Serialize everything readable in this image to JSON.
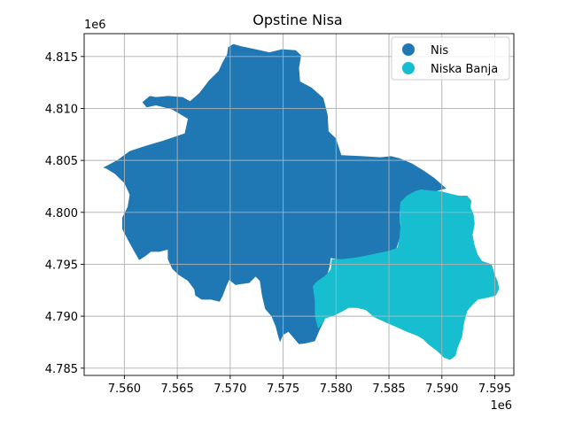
{
  "chart_data": {
    "type": "choropleth-map",
    "title": "Opstine Nisa",
    "x_offset_label": "1e6",
    "y_offset_label": "1e6",
    "xlim": [
      7.5562,
      7.5968
    ],
    "ylim": [
      4.7843,
      4.8172
    ],
    "x_ticks": [
      {
        "value": 7.56,
        "label": "7.560"
      },
      {
        "value": 7.565,
        "label": "7.565"
      },
      {
        "value": 7.57,
        "label": "7.570"
      },
      {
        "value": 7.575,
        "label": "7.575"
      },
      {
        "value": 7.58,
        "label": "7.580"
      },
      {
        "value": 7.585,
        "label": "7.585"
      },
      {
        "value": 7.59,
        "label": "7.590"
      },
      {
        "value": 7.595,
        "label": "7.595"
      }
    ],
    "y_ticks": [
      {
        "value": 4.785,
        "label": "4.785"
      },
      {
        "value": 4.79,
        "label": "4.790"
      },
      {
        "value": 4.795,
        "label": "4.795"
      },
      {
        "value": 4.8,
        "label": "4.800"
      },
      {
        "value": 4.805,
        "label": "4.805"
      },
      {
        "value": 4.81,
        "label": "4.810"
      },
      {
        "value": 4.815,
        "label": "4.815"
      }
    ],
    "grid": true,
    "legend_position": "top-right",
    "regions": [
      {
        "name": "Nis",
        "color": "#1f77b4",
        "polygon": [
          [
            7.558,
            4.8043
          ],
          [
            7.5593,
            4.805
          ],
          [
            7.5605,
            4.8059
          ],
          [
            7.562,
            4.8064
          ],
          [
            7.5637,
            4.8069
          ],
          [
            7.5657,
            4.8076
          ],
          [
            7.566,
            4.809
          ],
          [
            7.5645,
            4.8099
          ],
          [
            7.563,
            4.8103
          ],
          [
            7.5621,
            4.8101
          ],
          [
            7.5617,
            4.8106
          ],
          [
            7.5624,
            4.8112
          ],
          [
            7.563,
            4.8111
          ],
          [
            7.5641,
            4.8112
          ],
          [
            7.5655,
            4.8111
          ],
          [
            7.5662,
            4.8107
          ],
          [
            7.5671,
            4.8115
          ],
          [
            7.568,
            4.8127
          ],
          [
            7.5689,
            4.8136
          ],
          [
            7.5693,
            4.8145
          ],
          [
            7.5697,
            4.8152
          ],
          [
            7.5698,
            4.8159
          ],
          [
            7.5703,
            4.8162
          ],
          [
            7.571,
            4.816
          ],
          [
            7.5724,
            4.8157
          ],
          [
            7.5737,
            4.8154
          ],
          [
            7.5749,
            4.8157
          ],
          [
            7.5762,
            4.8156
          ],
          [
            7.5767,
            4.8151
          ],
          [
            7.5765,
            4.8139
          ],
          [
            7.5766,
            4.8126
          ],
          [
            7.5777,
            4.812
          ],
          [
            7.5788,
            4.811
          ],
          [
            7.5792,
            4.8094
          ],
          [
            7.5793,
            4.8078
          ],
          [
            7.58,
            4.8071
          ],
          [
            7.5805,
            4.8055
          ],
          [
            7.5825,
            4.8054
          ],
          [
            7.5842,
            4.8053
          ],
          [
            7.5852,
            4.8054
          ],
          [
            7.586,
            4.8052
          ],
          [
            7.5872,
            4.8047
          ],
          [
            7.5883,
            4.804
          ],
          [
            7.5893,
            4.8033
          ],
          [
            7.5904,
            4.8023
          ],
          [
            7.5894,
            4.802
          ],
          [
            7.588,
            4.802
          ],
          [
            7.587,
            4.8016
          ],
          [
            7.5861,
            4.801
          ],
          [
            7.586,
            4.7998
          ],
          [
            7.5861,
            4.7985
          ],
          [
            7.586,
            4.7975
          ],
          [
            7.5857,
            4.7965
          ],
          [
            7.5848,
            4.7962
          ],
          [
            7.5836,
            4.7959
          ],
          [
            7.5822,
            4.7956
          ],
          [
            7.5806,
            4.7954
          ],
          [
            7.5795,
            4.7956
          ],
          [
            7.5794,
            4.7948
          ],
          [
            7.5792,
            4.7941
          ],
          [
            7.5787,
            4.7936
          ],
          [
            7.5783,
            4.7934
          ],
          [
            7.578,
            4.7931
          ],
          [
            7.5782,
            4.7923
          ],
          [
            7.5786,
            4.7908
          ],
          [
            7.5789,
            4.7896
          ],
          [
            7.5785,
            4.7888
          ],
          [
            7.578,
            4.7876
          ],
          [
            7.5772,
            4.7874
          ],
          [
            7.5765,
            4.7873
          ],
          [
            7.576,
            4.7879
          ],
          [
            7.5755,
            4.7885
          ],
          [
            7.575,
            4.7882
          ],
          [
            7.5747,
            4.7875
          ],
          [
            7.5745,
            4.7882
          ],
          [
            7.5743,
            4.789
          ],
          [
            7.5739,
            4.79
          ],
          [
            7.5733,
            4.7907
          ],
          [
            7.573,
            4.792
          ],
          [
            7.5728,
            4.7934
          ],
          [
            7.5724,
            4.7938
          ],
          [
            7.5718,
            4.7932
          ],
          [
            7.5711,
            4.7931
          ],
          [
            7.5705,
            4.793
          ],
          [
            7.5699,
            4.7935
          ],
          [
            7.5696,
            4.7928
          ],
          [
            7.5693,
            4.792
          ],
          [
            7.569,
            4.7914
          ],
          [
            7.5682,
            4.7916
          ],
          [
            7.5673,
            4.7916
          ],
          [
            7.5667,
            4.792
          ],
          [
            7.5666,
            4.7926
          ],
          [
            7.566,
            4.7934
          ],
          [
            7.5651,
            4.794
          ],
          [
            7.5645,
            4.7946
          ],
          [
            7.5641,
            4.7955
          ],
          [
            7.5641,
            4.7964
          ],
          [
            7.5633,
            4.7962
          ],
          [
            7.5625,
            4.7962
          ],
          [
            7.562,
            4.7958
          ],
          [
            7.5614,
            4.7954
          ],
          [
            7.5609,
            4.7963
          ],
          [
            7.5603,
            4.7974
          ],
          [
            7.5598,
            4.7984
          ],
          [
            7.5598,
            4.7995
          ],
          [
            7.5603,
            4.8005
          ],
          [
            7.5605,
            4.8017
          ],
          [
            7.56,
            4.8028
          ],
          [
            7.5591,
            4.8037
          ],
          [
            7.5583,
            4.8042
          ]
        ]
      },
      {
        "name": "Niska Banja",
        "color": "#17becf",
        "polygon": [
          [
            7.5861,
            4.801
          ],
          [
            7.5867,
            4.8016
          ],
          [
            7.5874,
            4.802
          ],
          [
            7.588,
            4.8022
          ],
          [
            7.589,
            4.8021
          ],
          [
            7.59,
            4.802
          ],
          [
            7.5908,
            4.8018
          ],
          [
            7.5916,
            4.8016
          ],
          [
            7.5924,
            4.8016
          ],
          [
            7.5928,
            4.8011
          ],
          [
            7.5927,
            4.8005
          ],
          [
            7.593,
            4.7998
          ],
          [
            7.5931,
            4.7989
          ],
          [
            7.5929,
            4.7978
          ],
          [
            7.5931,
            4.7968
          ],
          [
            7.5934,
            4.7959
          ],
          [
            7.5938,
            4.7953
          ],
          [
            7.5947,
            4.795
          ],
          [
            7.595,
            4.794
          ],
          [
            7.5953,
            4.7933
          ],
          [
            7.5954,
            4.7926
          ],
          [
            7.5951,
            4.792
          ],
          [
            7.5944,
            4.7918
          ],
          [
            7.5934,
            4.7916
          ],
          [
            7.5929,
            4.7911
          ],
          [
            7.5924,
            4.7905
          ],
          [
            7.5921,
            4.7894
          ],
          [
            7.5919,
            4.788
          ],
          [
            7.5915,
            4.787
          ],
          [
            7.5913,
            4.7862
          ],
          [
            7.5908,
            4.7858
          ],
          [
            7.5902,
            4.786
          ],
          [
            7.5896,
            4.7866
          ],
          [
            7.5887,
            4.7873
          ],
          [
            7.5882,
            4.7878
          ],
          [
            7.5877,
            4.7881
          ],
          [
            7.5867,
            4.7885
          ],
          [
            7.5856,
            4.789
          ],
          [
            7.5847,
            4.7894
          ],
          [
            7.5836,
            4.7899
          ],
          [
            7.5828,
            4.7906
          ],
          [
            7.582,
            4.7908
          ],
          [
            7.5812,
            4.7908
          ],
          [
            7.5805,
            4.7904
          ],
          [
            7.5797,
            4.79
          ],
          [
            7.579,
            4.7898
          ],
          [
            7.5787,
            4.7893
          ],
          [
            7.5783,
            4.7888
          ],
          [
            7.578,
            4.79
          ],
          [
            7.578,
            4.7915
          ],
          [
            7.5778,
            4.7929
          ],
          [
            7.5784,
            4.7935
          ],
          [
            7.5791,
            4.794
          ],
          [
            7.5795,
            4.7945
          ],
          [
            7.5796,
            4.7955
          ],
          [
            7.5806,
            4.7955
          ],
          [
            7.5822,
            4.7957
          ],
          [
            7.5836,
            4.796
          ],
          [
            7.585,
            4.7963
          ],
          [
            7.5858,
            4.7966
          ],
          [
            7.586,
            4.7976
          ],
          [
            7.5861,
            4.7988
          ],
          [
            7.586,
            4.8
          ]
        ]
      }
    ]
  }
}
